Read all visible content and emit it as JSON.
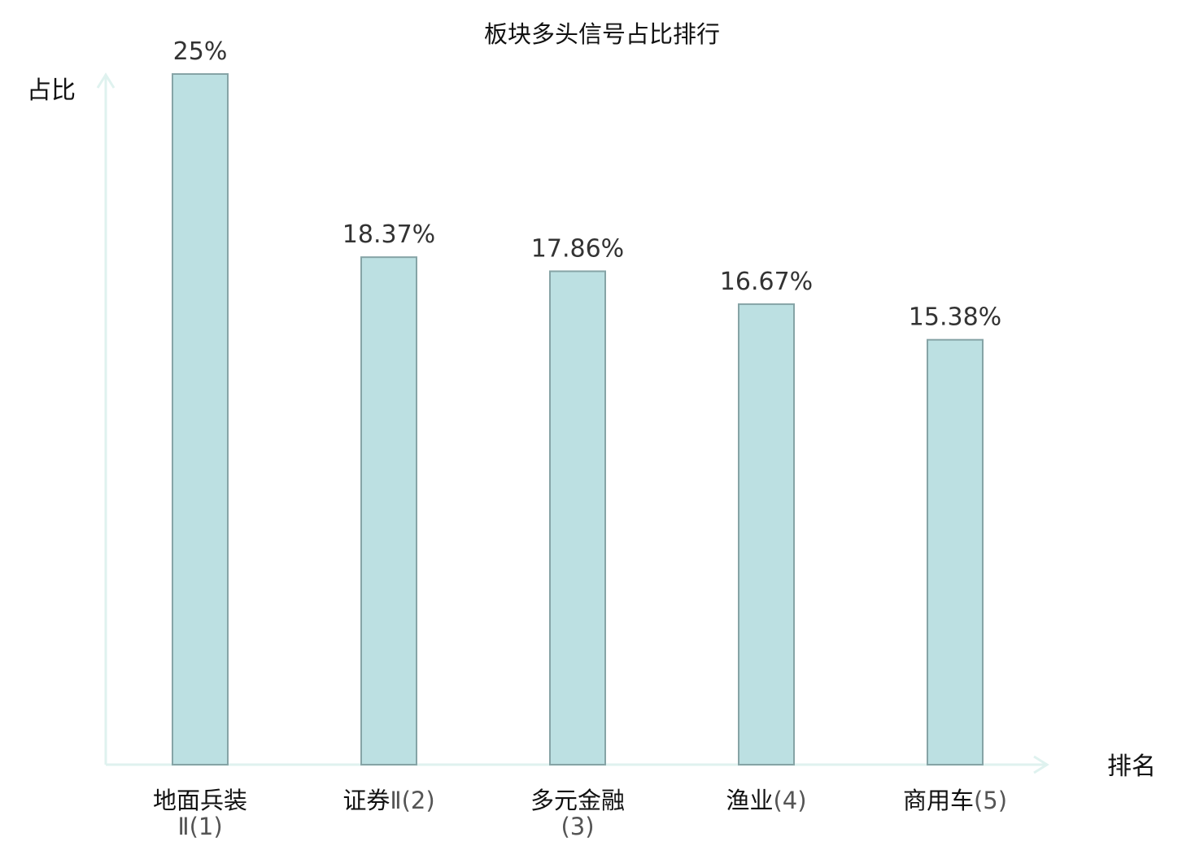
{
  "chart_data": {
    "type": "bar",
    "title": "板块多头信号占比排行",
    "ylabel": "占比",
    "xlabel": "排名",
    "ylim": [
      0,
      25
    ],
    "grid": false,
    "categories": [
      {
        "main": "地面兵装",
        "sub": "Ⅱ(1)"
      },
      {
        "main": "证券",
        "sub": "Ⅱ(2)"
      },
      {
        "main": "多元金融",
        "sub": "(3)"
      },
      {
        "main": "渔业",
        "sub": "(4)"
      },
      {
        "main": "商用车",
        "sub": "(5)"
      }
    ],
    "values": [
      25,
      18.37,
      17.86,
      16.67,
      15.38
    ],
    "value_labels": [
      "25%",
      "18.37%",
      "17.86%",
      "16.67%",
      "15.38%"
    ],
    "highlight_index": 3,
    "colors": {
      "bar_fill": "#bce0e2",
      "bar_stroke": "#86a4a6",
      "axis": "#dff2ef",
      "highlight_text": "#e8211e"
    }
  }
}
